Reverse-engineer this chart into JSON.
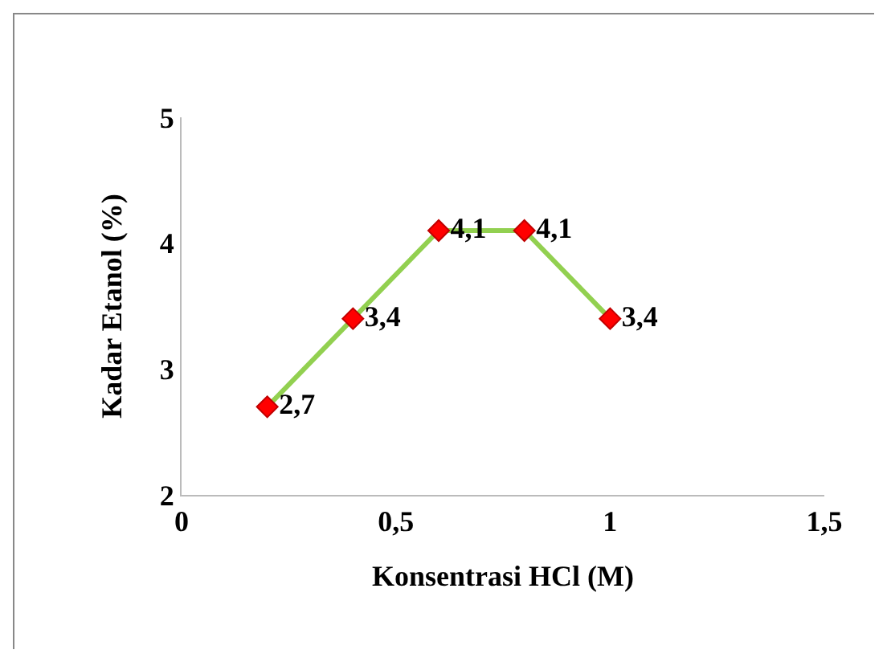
{
  "chart_data": {
    "type": "line",
    "xlabel": "Konsentrasi HCl (M)",
    "ylabel": "Kadar Etanol (%)",
    "x": [
      0.2,
      0.4,
      0.6,
      0.8,
      1.0
    ],
    "series": [
      {
        "color": "#92d050",
        "colors": [
          "#ff0000",
          "#ff0000",
          "#ff0000",
          "#ff0000",
          "#ff0000"
        ],
        "values": [
          2.7,
          3.4,
          4.1,
          4.1,
          3.4
        ],
        "value_labels": [
          "2,7",
          "3,4",
          "4,1",
          "4,1",
          "3,4"
        ]
      }
    ],
    "xlim": [
      0,
      1.5
    ],
    "xticks": [
      0,
      {
        "value": 0.5,
        "label": "0,5"
      },
      1,
      {
        "value": 1.5,
        "label": "1,5"
      }
    ],
    "ylim": [
      2,
      5
    ],
    "yticks": [
      2,
      3,
      4,
      5
    ],
    "grid": false,
    "legend": false,
    "marker": "diamond",
    "line_style": "solid"
  }
}
